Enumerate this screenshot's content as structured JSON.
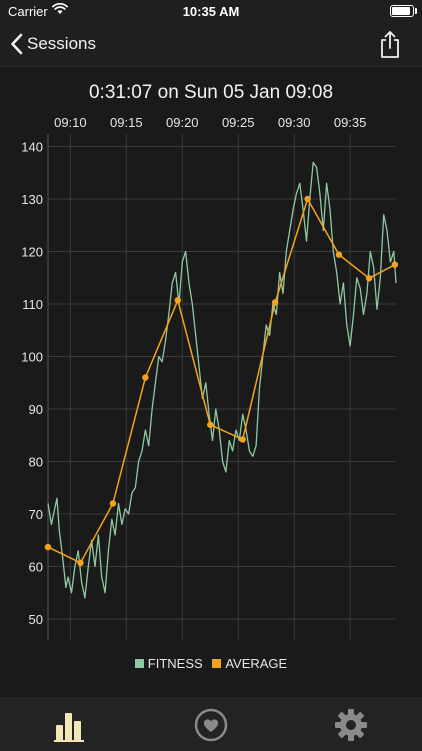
{
  "status_bar": {
    "carrier": "Carrier",
    "time": "10:35 AM"
  },
  "nav": {
    "back_label": "Sessions"
  },
  "session": {
    "title": "0:31:07 on Sun 05 Jan 09:08"
  },
  "colors": {
    "fitness": "#8fc9a1",
    "average": "#f5a31a",
    "grid": "#3a3a3a",
    "text": "#e6e6e6"
  },
  "chart_data": {
    "type": "line",
    "title": "0:31:07 on Sun 05 Jan 09:08",
    "x_axis_position": "top",
    "x_ticks": [
      "09:10",
      "09:15",
      "09:20",
      "09:25",
      "09:30",
      "09:35"
    ],
    "y_ticks": [
      50,
      60,
      70,
      80,
      90,
      100,
      110,
      120,
      130,
      140
    ],
    "ylim": [
      46,
      142
    ],
    "xlim_minutes_from_0908": [
      0,
      31.1
    ],
    "grid": true,
    "legend_position": "bottom",
    "series": [
      {
        "name": "FITNESS",
        "x": [
          0.0,
          0.3,
          0.6,
          0.8,
          1.0,
          1.3,
          1.6,
          1.8,
          2.1,
          2.4,
          2.7,
          3.0,
          3.3,
          3.6,
          3.9,
          4.2,
          4.5,
          4.8,
          5.1,
          5.4,
          5.7,
          6.0,
          6.3,
          6.6,
          6.9,
          7.2,
          7.5,
          7.8,
          8.1,
          8.4,
          8.7,
          9.0,
          9.3,
          9.6,
          9.9,
          10.2,
          10.5,
          10.8,
          11.1,
          11.4,
          11.7,
          12.0,
          12.3,
          12.6,
          12.9,
          13.2,
          13.5,
          13.8,
          14.1,
          14.4,
          14.7,
          15.0,
          15.3,
          15.6,
          15.9,
          16.2,
          16.5,
          16.8,
          17.1,
          17.4,
          17.7,
          18.0,
          18.3,
          18.6,
          18.9,
          19.2,
          19.5,
          19.8,
          20.1,
          20.4,
          20.7,
          21.0,
          21.3,
          21.6,
          21.9,
          22.2,
          22.5,
          22.8,
          23.1,
          23.4,
          23.7,
          24.0,
          24.3,
          24.6,
          24.9,
          25.2,
          25.5,
          25.8,
          26.1,
          26.4,
          26.7,
          27.0,
          27.3,
          27.6,
          27.9,
          28.2,
          28.5,
          28.8,
          29.1,
          29.4,
          29.7,
          30.0,
          30.3,
          30.6,
          30.9,
          31.1
        ],
        "values": [
          72,
          68,
          71,
          73,
          67,
          62,
          56,
          58,
          55,
          60,
          63,
          57,
          54,
          60,
          65,
          60,
          66,
          58,
          55,
          63,
          69,
          66,
          72,
          68,
          71,
          70,
          74,
          75,
          80,
          82,
          86,
          83,
          90,
          95,
          100,
          99,
          103,
          108,
          114,
          116,
          110,
          118,
          120,
          114,
          110,
          104,
          98,
          92,
          95,
          89,
          84,
          90,
          86,
          80,
          78,
          84,
          82,
          86,
          84,
          89,
          86,
          82,
          81,
          83,
          94,
          100,
          106,
          104,
          110,
          108,
          116,
          112,
          120,
          124,
          128,
          131,
          133,
          128,
          122,
          130,
          137,
          136,
          131,
          124,
          133,
          128,
          120,
          116,
          110,
          114,
          106,
          102,
          108,
          115,
          113,
          108,
          112,
          120,
          117,
          109,
          115,
          127,
          124,
          118,
          120,
          114
        ]
      },
      {
        "name": "AVERAGE",
        "x": [
          0.0,
          2.9,
          5.8,
          8.7,
          11.6,
          14.5,
          17.4,
          20.3,
          23.2,
          26.0,
          28.7,
          31.0
        ],
        "values": [
          63.7,
          60.7,
          72.0,
          96.0,
          110.7,
          87.0,
          84.2,
          110.3,
          130.0,
          119.4,
          114.9,
          117.5
        ]
      }
    ]
  },
  "legend": {
    "fitness_label": "FITNESS",
    "average_label": "AVERAGE"
  },
  "tab_bar": {
    "tabs": [
      "stats-tab",
      "heart-tab",
      "settings-tab"
    ]
  }
}
